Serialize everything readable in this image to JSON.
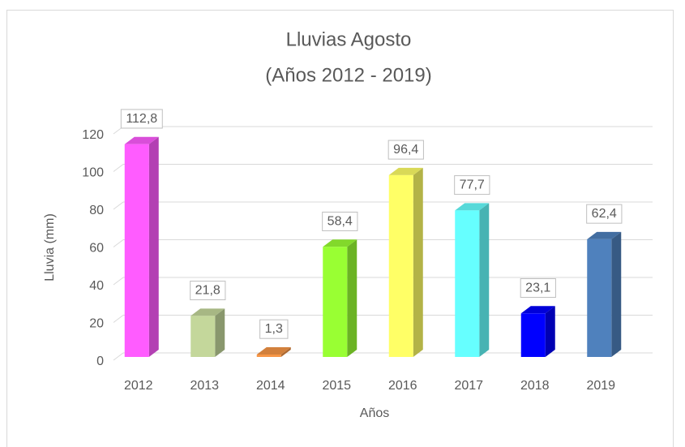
{
  "chart_data": {
    "type": "bar3d",
    "title": "Lluvias Agosto",
    "subtitle": "(Años 2012 - 2019)",
    "x_label": "Años",
    "y_label": "Lluvia (mm)",
    "categories": [
      "2012",
      "2013",
      "2014",
      "2015",
      "2016",
      "2017",
      "2018",
      "2019"
    ],
    "values": [
      112.8,
      21.8,
      1.3,
      58.4,
      96.4,
      77.7,
      23.1,
      62.4
    ],
    "value_labels": [
      "112,8",
      "21,8",
      "1,3",
      "58,4",
      "96,4",
      "77,7",
      "23,1",
      "62,4"
    ],
    "colors": [
      "#ff5cff",
      "#c4d79b",
      "#f79646",
      "#99ff33",
      "#ffff66",
      "#66ffff",
      "#0000ff",
      "#4f81bd"
    ],
    "ylim": [
      0,
      120
    ],
    "yticks": [
      0,
      20,
      40,
      60,
      80,
      100,
      120
    ],
    "grid": true
  }
}
